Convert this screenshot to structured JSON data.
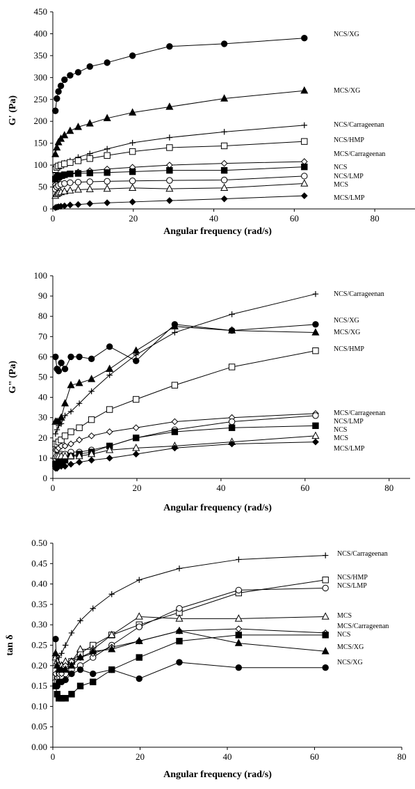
{
  "chart_data": [
    {
      "type": "line",
      "ylabel": "G' (Pa)",
      "xlabel": "Angular frequency (rad/s)",
      "xlim": [
        0,
        90
      ],
      "ylim": [
        0,
        450
      ],
      "xticks": [
        "0",
        "20",
        "40",
        "60",
        "80"
      ],
      "yticks": [
        "0",
        "50",
        "100",
        "150",
        "200",
        "250",
        "300",
        "350",
        "400",
        "450"
      ],
      "grid": false,
      "x": [
        0.63,
        1.0,
        1.4,
        2.0,
        2.9,
        4.3,
        6.3,
        9.2,
        13.5,
        19.8,
        29.0,
        42.6,
        62.5
      ],
      "series": [
        {
          "name": "NCS/XG",
          "marker": "circle-filled",
          "values": [
            224,
            252,
            268,
            281,
            295,
            305,
            312,
            325,
            334,
            350,
            371,
            377,
            390
          ]
        },
        {
          "name": "MCS/XG",
          "marker": "triangle-filled",
          "values": [
            125,
            140,
            152,
            160,
            168,
            178,
            187,
            195,
            207,
            220,
            233,
            252,
            270
          ]
        },
        {
          "name": "NCS/Carrageenan",
          "marker": "plus",
          "values": [
            82,
            90,
            95,
            100,
            105,
            110,
            118,
            126,
            137,
            151,
            163,
            176,
            191
          ]
        },
        {
          "name": "NCS/HMP",
          "marker": "square-open",
          "values": [
            90,
            95,
            98,
            100,
            103,
            106,
            110,
            115,
            122,
            131,
            140,
            144,
            154
          ]
        },
        {
          "name": "MCS/Carrageenan",
          "marker": "diamond-open",
          "values": [
            55,
            62,
            68,
            72,
            76,
            80,
            84,
            87,
            91,
            95,
            100,
            104,
            108
          ]
        },
        {
          "name": "NCS",
          "marker": "square-filled",
          "values": [
            68,
            72,
            74,
            76,
            78,
            80,
            81,
            82,
            83,
            85,
            88,
            88,
            96
          ]
        },
        {
          "name": "NCS/LMP",
          "marker": "circle-open",
          "values": [
            45,
            50,
            53,
            56,
            58,
            60,
            61,
            62,
            63,
            64,
            65,
            66,
            75
          ]
        },
        {
          "name": "MCS",
          "marker": "triangle-open",
          "values": [
            30,
            34,
            36,
            38,
            40,
            42,
            44,
            45,
            46,
            48,
            46,
            48,
            58
          ]
        },
        {
          "name": "MCS/LMP",
          "marker": "diamond-filled",
          "values": [
            3,
            4,
            5,
            6,
            7,
            9,
            10,
            12,
            14,
            16,
            19,
            23,
            30
          ]
        }
      ]
    },
    {
      "type": "line",
      "ylabel": "G\" (Pa)",
      "xlabel": "Angular frequency (rad/s)",
      "xlim": [
        0,
        85
      ],
      "ylim": [
        0,
        100
      ],
      "xticks": [
        "0",
        "20",
        "40",
        "60",
        "80"
      ],
      "yticks": [
        "0",
        "10",
        "20",
        "30",
        "40",
        "50",
        "60",
        "70",
        "80",
        "90",
        "100"
      ],
      "grid": false,
      "x": [
        0.63,
        1.0,
        1.4,
        2.0,
        2.9,
        4.3,
        6.3,
        9.2,
        13.5,
        19.8,
        29.0,
        42.6,
        62.5
      ],
      "series": [
        {
          "name": "NCS/Carrageenan",
          "marker": "plus",
          "values": [
            22,
            24,
            26,
            27,
            31,
            33,
            37,
            43,
            51,
            61,
            72,
            81,
            91
          ]
        },
        {
          "name": "NCS/XG",
          "marker": "circle-filled",
          "values": [
            60,
            54,
            53,
            57,
            54,
            60,
            60,
            59,
            65,
            58,
            76,
            73,
            76
          ]
        },
        {
          "name": "MCS/XG",
          "marker": "triangle-filled",
          "values": [
            28,
            28,
            28,
            30,
            37,
            46,
            47,
            49,
            54,
            63,
            75,
            73,
            72
          ]
        },
        {
          "name": "NCS/HMP",
          "marker": "square-open",
          "values": [
            17,
            17,
            18,
            19,
            21,
            23,
            25,
            29,
            34,
            39,
            46,
            55,
            63
          ]
        },
        {
          "name": "MCS/Carrageenan",
          "marker": "diamond-open",
          "values": [
            14,
            14,
            15,
            16,
            16,
            17,
            19,
            21,
            23,
            25,
            28,
            30,
            32
          ]
        },
        {
          "name": "NCS/LMP",
          "marker": "circle-open",
          "values": [
            10,
            11,
            11,
            12,
            12,
            13,
            13,
            14,
            16,
            20,
            24,
            28,
            31
          ]
        },
        {
          "name": "NCS",
          "marker": "square-filled",
          "values": [
            7,
            7,
            8,
            8,
            9,
            11,
            12,
            13,
            16,
            20,
            23,
            25,
            26
          ]
        },
        {
          "name": "MCS",
          "marker": "triangle-open",
          "values": [
            11,
            11,
            11,
            11,
            11,
            11,
            11,
            12,
            14,
            15,
            16,
            18,
            21
          ]
        },
        {
          "name": "MCS/LMP",
          "marker": "diamond-filled",
          "values": [
            5,
            5,
            6,
            6,
            6,
            7,
            8,
            9,
            10,
            12,
            15,
            17,
            18
          ]
        }
      ]
    },
    {
      "type": "line",
      "ylabel": "tan δ",
      "xlabel": "Angular frequency (rad/s)",
      "xlim": [
        0,
        80
      ],
      "ylim": [
        0,
        0.5
      ],
      "xticks": [
        "0",
        "20",
        "40",
        "60",
        "80"
      ],
      "yticks": [
        "0.00",
        "0.05",
        "0.10",
        "0.15",
        "0.20",
        "0.25",
        "0.30",
        "0.35",
        "0.40",
        "0.45",
        "0.50"
      ],
      "grid": false,
      "x": [
        0.63,
        1.0,
        1.4,
        2.0,
        2.9,
        4.3,
        6.3,
        9.2,
        13.5,
        19.8,
        29.0,
        42.6,
        62.5
      ],
      "series": [
        {
          "name": "NCS/Carrageenan",
          "marker": "plus",
          "values": [
            0.2,
            0.21,
            0.22,
            0.23,
            0.25,
            0.28,
            0.31,
            0.34,
            0.375,
            0.41,
            0.438,
            0.46,
            0.47
          ]
        },
        {
          "name": "NCS/HMP",
          "marker": "square-open",
          "values": [
            0.17,
            0.17,
            0.18,
            0.19,
            0.2,
            0.21,
            0.23,
            0.25,
            0.275,
            0.3,
            0.33,
            0.378,
            0.41
          ]
        },
        {
          "name": "NCS/LMP",
          "marker": "circle-open",
          "values": [
            0.16,
            0.16,
            0.17,
            0.17,
            0.18,
            0.19,
            0.2,
            0.22,
            0.25,
            0.295,
            0.34,
            0.385,
            0.39
          ]
        },
        {
          "name": "MCS",
          "marker": "triangle-open",
          "values": [
            0.22,
            0.21,
            0.2,
            0.2,
            0.21,
            0.21,
            0.24,
            0.24,
            0.275,
            0.32,
            0.315,
            0.315,
            0.32
          ]
        },
        {
          "name": "MCS/Carrageenan",
          "marker": "diamond-open",
          "values": [
            0.18,
            0.17,
            0.18,
            0.18,
            0.2,
            0.21,
            0.22,
            0.23,
            0.245,
            0.26,
            0.285,
            0.29,
            0.28
          ]
        },
        {
          "name": "NCS",
          "marker": "square-filled",
          "values": [
            0.15,
            0.13,
            0.12,
            0.12,
            0.12,
            0.13,
            0.15,
            0.16,
            0.19,
            0.22,
            0.26,
            0.275,
            0.275
          ]
        },
        {
          "name": "MCS/XG",
          "marker": "triangle-filled",
          "values": [
            0.23,
            0.2,
            0.19,
            0.19,
            0.19,
            0.2,
            0.22,
            0.235,
            0.24,
            0.26,
            0.285,
            0.255,
            0.235
          ]
        },
        {
          "name": "NCS/XG",
          "marker": "circle-filled",
          "values": [
            0.265,
            0.15,
            0.16,
            0.16,
            0.165,
            0.18,
            0.19,
            0.18,
            0.19,
            0.168,
            0.208,
            0.195,
            0.195
          ]
        }
      ]
    }
  ]
}
